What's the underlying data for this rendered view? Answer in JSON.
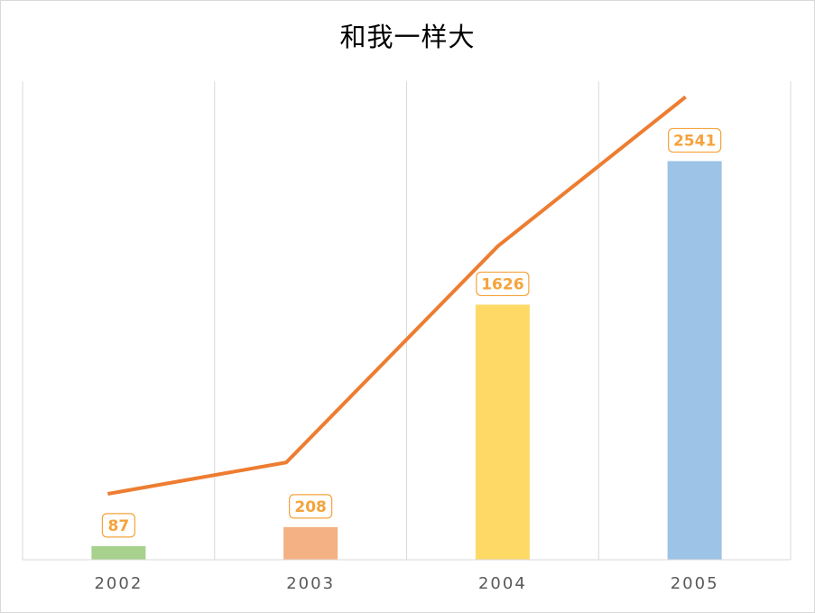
{
  "chart_data": {
    "type": "bar",
    "title": "和我一样大",
    "categories": [
      "2002",
      "2003",
      "2004",
      "2005"
    ],
    "series": [
      {
        "values": [
          87,
          208,
          1626,
          2541
        ]
      }
    ],
    "line_values": [
      420,
      620,
      2000,
      2950
    ],
    "bar_colors": [
      "#a9d18e",
      "#f4b183",
      "#ffd966",
      "#9dc3e6"
    ],
    "line_color": "#ed7d31",
    "label_color": "#f5a33c",
    "ylim": [
      0,
      3050
    ],
    "grid": "vertical",
    "legend": "none"
  }
}
